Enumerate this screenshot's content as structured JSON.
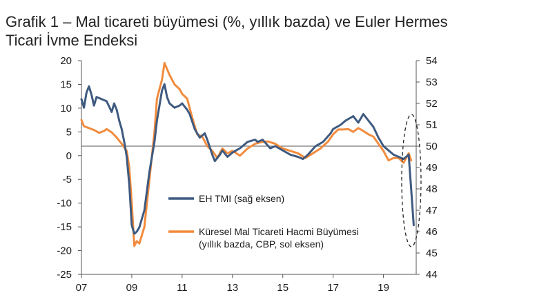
{
  "chart_data": {
    "type": "line",
    "title_line1": "Grafik 1 – Mal ticareti büyümesi (%, yıllık bazda) ve Euler Hermes",
    "title_line2": "Ticari İvme Endeksi",
    "left_axis": {
      "range": [
        -25,
        20
      ],
      "ticks": [
        "20",
        "15",
        "10",
        "5",
        "0",
        "-5",
        "-10",
        "-15",
        "-20",
        "-25"
      ]
    },
    "right_axis": {
      "range": [
        44,
        54
      ],
      "ticks": [
        "54",
        "53",
        "52",
        "51",
        "50",
        "49",
        "48",
        "47",
        "46",
        "45",
        "44"
      ]
    },
    "x_axis": {
      "range": [
        2007,
        2020.3
      ],
      "ticks": [
        "07",
        "09",
        "11",
        "13",
        "15",
        "17",
        "19"
      ]
    },
    "reference_line": {
      "right_axis_value": 50
    },
    "series": [
      {
        "name": "EH TMI (sağ eksen)",
        "axis": "right",
        "color": "#3f5a80",
        "x": [
          2007.0,
          2007.1,
          2007.2,
          2007.3,
          2007.4,
          2007.5,
          2007.6,
          2007.8,
          2008.0,
          2008.2,
          2008.3,
          2008.4,
          2008.5,
          2008.6,
          2008.7,
          2008.8,
          2008.9,
          2009.0,
          2009.1,
          2009.2,
          2009.3,
          2009.5,
          2009.7,
          2009.9,
          2010.0,
          2010.2,
          2010.3,
          2010.4,
          2010.5,
          2010.6,
          2010.7,
          2010.9,
          2011.0,
          2011.2,
          2011.3,
          2011.5,
          2011.7,
          2011.9,
          2012.0,
          2012.2,
          2012.3,
          2012.5,
          2012.6,
          2012.8,
          2013.0,
          2013.3,
          2013.6,
          2013.9,
          2014.0,
          2014.2,
          2014.5,
          2014.7,
          2015.0,
          2015.3,
          2015.6,
          2015.8,
          2016.0,
          2016.3,
          2016.6,
          2016.9,
          2017.0,
          2017.3,
          2017.5,
          2017.8,
          2018.0,
          2018.2,
          2018.4,
          2018.6,
          2018.8,
          2019.0,
          2019.2,
          2019.4,
          2019.6,
          2019.8,
          2020.0,
          2020.1,
          2020.2
        ],
        "values": [
          52.2,
          51.8,
          52.5,
          52.8,
          52.4,
          51.9,
          52.3,
          52.2,
          52.1,
          51.6,
          52.0,
          51.7,
          51.2,
          50.8,
          50.2,
          49.5,
          48.2,
          46.3,
          45.9,
          46.0,
          46.2,
          47.0,
          48.8,
          50.2,
          51.2,
          52.6,
          52.9,
          52.3,
          52.0,
          51.9,
          51.8,
          51.9,
          52.0,
          51.7,
          51.5,
          50.8,
          50.4,
          50.6,
          50.3,
          49.6,
          49.3,
          49.6,
          49.8,
          49.5,
          49.7,
          49.9,
          50.2,
          50.3,
          50.2,
          50.3,
          49.9,
          50.0,
          49.8,
          49.6,
          49.5,
          49.4,
          49.6,
          50.0,
          50.2,
          50.6,
          50.8,
          51.0,
          51.2,
          51.4,
          51.1,
          51.5,
          51.2,
          50.9,
          50.4,
          50.0,
          49.8,
          49.6,
          49.5,
          49.4,
          49.6,
          48.0,
          46.3
        ]
      },
      {
        "name": "Küresel Mal Ticareti Hacmi Büyümesi",
        "name_line2": "(yıllık bazda, CBP, sol eksen)",
        "axis": "left",
        "color": "#f28b3c",
        "x": [
          2007.0,
          2007.1,
          2007.3,
          2007.5,
          2007.7,
          2007.9,
          2008.0,
          2008.2,
          2008.4,
          2008.6,
          2008.8,
          2008.9,
          2009.0,
          2009.1,
          2009.2,
          2009.3,
          2009.5,
          2009.7,
          2009.9,
          2010.0,
          2010.2,
          2010.3,
          2010.5,
          2010.7,
          2010.9,
          2011.0,
          2011.2,
          2011.4,
          2011.6,
          2011.8,
          2012.0,
          2012.2,
          2012.4,
          2012.6,
          2012.8,
          2013.0,
          2013.3,
          2013.6,
          2013.9,
          2014.1,
          2014.4,
          2014.7,
          2015.0,
          2015.3,
          2015.6,
          2015.9,
          2016.2,
          2016.5,
          2016.8,
          2017.0,
          2017.2,
          2017.4,
          2017.6,
          2017.8,
          2018.0,
          2018.2,
          2018.4,
          2018.6,
          2018.8,
          2019.0,
          2019.2,
          2019.4,
          2019.6,
          2019.8,
          2020.0,
          2020.1
        ],
        "values": [
          7.5,
          6.2,
          5.8,
          5.4,
          4.8,
          5.2,
          5.6,
          4.9,
          3.8,
          2.5,
          1.0,
          -2.5,
          -10.0,
          -19.0,
          -18.0,
          -18.5,
          -15.0,
          -5.0,
          5.0,
          12.0,
          16.0,
          19.5,
          17.0,
          15.0,
          14.0,
          13.0,
          12.0,
          8.0,
          4.5,
          4.0,
          2.0,
          1.0,
          -0.5,
          1.5,
          0.5,
          1.0,
          0.0,
          1.5,
          2.5,
          2.8,
          3.0,
          2.5,
          1.5,
          1.0,
          0.5,
          -0.5,
          0.5,
          1.5,
          3.0,
          4.5,
          5.5,
          5.5,
          5.6,
          5.0,
          5.8,
          5.2,
          4.5,
          4.0,
          2.5,
          1.0,
          -1.0,
          -0.5,
          -0.5,
          -1.5,
          0.5,
          -1.0
        ]
      }
    ],
    "annotation": "dashed ellipse highlighting the 2020 drop"
  }
}
